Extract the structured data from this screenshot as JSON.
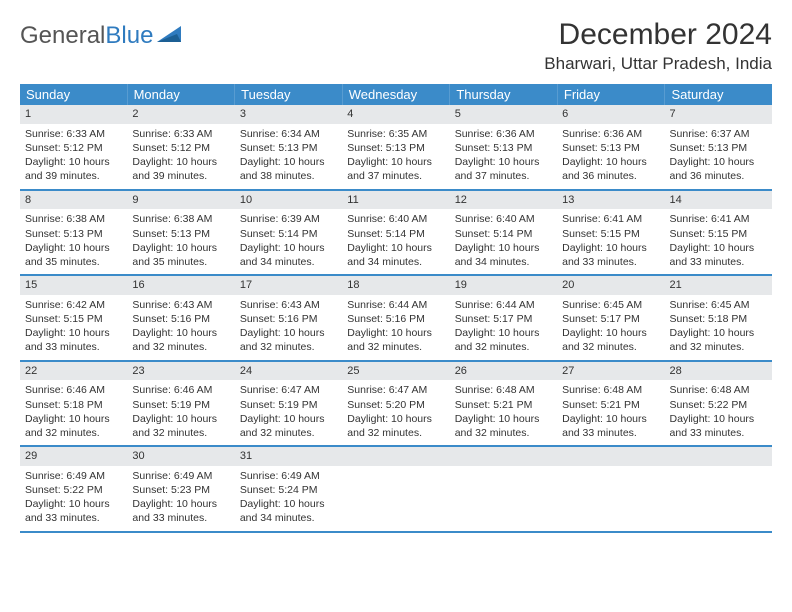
{
  "logo": {
    "textGray": "General",
    "textBlue": "Blue"
  },
  "title": "December 2024",
  "location": "Bharwari, Uttar Pradesh, India",
  "dayNames": [
    "Sunday",
    "Monday",
    "Tuesday",
    "Wednesday",
    "Thursday",
    "Friday",
    "Saturday"
  ],
  "colors": {
    "headerBg": "#3b8bc9",
    "dayNumBg": "#e6e8ea",
    "ruleColor": "#3b8bc9",
    "text": "#333333",
    "logoBlue": "#2f7bbf"
  },
  "weeks": [
    [
      {
        "n": "1",
        "sunrise": "Sunrise: 6:33 AM",
        "sunset": "Sunset: 5:12 PM",
        "daylight": "Daylight: 10 hours and 39 minutes."
      },
      {
        "n": "2",
        "sunrise": "Sunrise: 6:33 AM",
        "sunset": "Sunset: 5:12 PM",
        "daylight": "Daylight: 10 hours and 39 minutes."
      },
      {
        "n": "3",
        "sunrise": "Sunrise: 6:34 AM",
        "sunset": "Sunset: 5:13 PM",
        "daylight": "Daylight: 10 hours and 38 minutes."
      },
      {
        "n": "4",
        "sunrise": "Sunrise: 6:35 AM",
        "sunset": "Sunset: 5:13 PM",
        "daylight": "Daylight: 10 hours and 37 minutes."
      },
      {
        "n": "5",
        "sunrise": "Sunrise: 6:36 AM",
        "sunset": "Sunset: 5:13 PM",
        "daylight": "Daylight: 10 hours and 37 minutes."
      },
      {
        "n": "6",
        "sunrise": "Sunrise: 6:36 AM",
        "sunset": "Sunset: 5:13 PM",
        "daylight": "Daylight: 10 hours and 36 minutes."
      },
      {
        "n": "7",
        "sunrise": "Sunrise: 6:37 AM",
        "sunset": "Sunset: 5:13 PM",
        "daylight": "Daylight: 10 hours and 36 minutes."
      }
    ],
    [
      {
        "n": "8",
        "sunrise": "Sunrise: 6:38 AM",
        "sunset": "Sunset: 5:13 PM",
        "daylight": "Daylight: 10 hours and 35 minutes."
      },
      {
        "n": "9",
        "sunrise": "Sunrise: 6:38 AM",
        "sunset": "Sunset: 5:13 PM",
        "daylight": "Daylight: 10 hours and 35 minutes."
      },
      {
        "n": "10",
        "sunrise": "Sunrise: 6:39 AM",
        "sunset": "Sunset: 5:14 PM",
        "daylight": "Daylight: 10 hours and 34 minutes."
      },
      {
        "n": "11",
        "sunrise": "Sunrise: 6:40 AM",
        "sunset": "Sunset: 5:14 PM",
        "daylight": "Daylight: 10 hours and 34 minutes."
      },
      {
        "n": "12",
        "sunrise": "Sunrise: 6:40 AM",
        "sunset": "Sunset: 5:14 PM",
        "daylight": "Daylight: 10 hours and 34 minutes."
      },
      {
        "n": "13",
        "sunrise": "Sunrise: 6:41 AM",
        "sunset": "Sunset: 5:15 PM",
        "daylight": "Daylight: 10 hours and 33 minutes."
      },
      {
        "n": "14",
        "sunrise": "Sunrise: 6:41 AM",
        "sunset": "Sunset: 5:15 PM",
        "daylight": "Daylight: 10 hours and 33 minutes."
      }
    ],
    [
      {
        "n": "15",
        "sunrise": "Sunrise: 6:42 AM",
        "sunset": "Sunset: 5:15 PM",
        "daylight": "Daylight: 10 hours and 33 minutes."
      },
      {
        "n": "16",
        "sunrise": "Sunrise: 6:43 AM",
        "sunset": "Sunset: 5:16 PM",
        "daylight": "Daylight: 10 hours and 32 minutes."
      },
      {
        "n": "17",
        "sunrise": "Sunrise: 6:43 AM",
        "sunset": "Sunset: 5:16 PM",
        "daylight": "Daylight: 10 hours and 32 minutes."
      },
      {
        "n": "18",
        "sunrise": "Sunrise: 6:44 AM",
        "sunset": "Sunset: 5:16 PM",
        "daylight": "Daylight: 10 hours and 32 minutes."
      },
      {
        "n": "19",
        "sunrise": "Sunrise: 6:44 AM",
        "sunset": "Sunset: 5:17 PM",
        "daylight": "Daylight: 10 hours and 32 minutes."
      },
      {
        "n": "20",
        "sunrise": "Sunrise: 6:45 AM",
        "sunset": "Sunset: 5:17 PM",
        "daylight": "Daylight: 10 hours and 32 minutes."
      },
      {
        "n": "21",
        "sunrise": "Sunrise: 6:45 AM",
        "sunset": "Sunset: 5:18 PM",
        "daylight": "Daylight: 10 hours and 32 minutes."
      }
    ],
    [
      {
        "n": "22",
        "sunrise": "Sunrise: 6:46 AM",
        "sunset": "Sunset: 5:18 PM",
        "daylight": "Daylight: 10 hours and 32 minutes."
      },
      {
        "n": "23",
        "sunrise": "Sunrise: 6:46 AM",
        "sunset": "Sunset: 5:19 PM",
        "daylight": "Daylight: 10 hours and 32 minutes."
      },
      {
        "n": "24",
        "sunrise": "Sunrise: 6:47 AM",
        "sunset": "Sunset: 5:19 PM",
        "daylight": "Daylight: 10 hours and 32 minutes."
      },
      {
        "n": "25",
        "sunrise": "Sunrise: 6:47 AM",
        "sunset": "Sunset: 5:20 PM",
        "daylight": "Daylight: 10 hours and 32 minutes."
      },
      {
        "n": "26",
        "sunrise": "Sunrise: 6:48 AM",
        "sunset": "Sunset: 5:21 PM",
        "daylight": "Daylight: 10 hours and 32 minutes."
      },
      {
        "n": "27",
        "sunrise": "Sunrise: 6:48 AM",
        "sunset": "Sunset: 5:21 PM",
        "daylight": "Daylight: 10 hours and 33 minutes."
      },
      {
        "n": "28",
        "sunrise": "Sunrise: 6:48 AM",
        "sunset": "Sunset: 5:22 PM",
        "daylight": "Daylight: 10 hours and 33 minutes."
      }
    ],
    [
      {
        "n": "29",
        "sunrise": "Sunrise: 6:49 AM",
        "sunset": "Sunset: 5:22 PM",
        "daylight": "Daylight: 10 hours and 33 minutes."
      },
      {
        "n": "30",
        "sunrise": "Sunrise: 6:49 AM",
        "sunset": "Sunset: 5:23 PM",
        "daylight": "Daylight: 10 hours and 33 minutes."
      },
      {
        "n": "31",
        "sunrise": "Sunrise: 6:49 AM",
        "sunset": "Sunset: 5:24 PM",
        "daylight": "Daylight: 10 hours and 34 minutes."
      },
      {
        "empty": true
      },
      {
        "empty": true
      },
      {
        "empty": true
      },
      {
        "empty": true
      }
    ]
  ]
}
